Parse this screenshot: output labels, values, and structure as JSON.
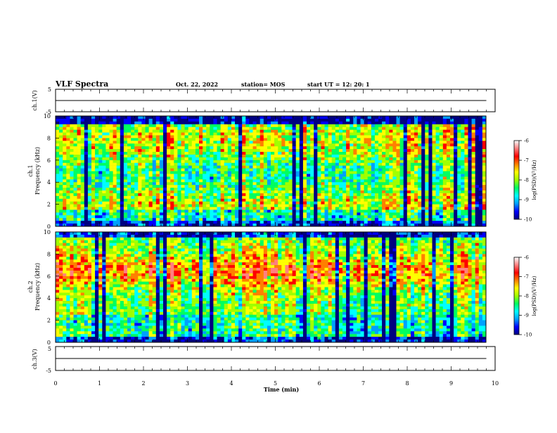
{
  "header": {
    "title": "VLF Spectra",
    "date": "Oct. 22, 2022",
    "station": "station= MOS",
    "start_ut": "start  UT =   12: 20: 1"
  },
  "chart_data": [
    {
      "type": "line",
      "title": "",
      "ylabel": "ch.1(V)",
      "xlabel": "",
      "xlim": [
        0,
        10
      ],
      "ylim": [
        -5,
        5
      ],
      "yticks": [
        "5",
        "-5"
      ],
      "x": [
        0,
        9.8
      ],
      "series": [
        {
          "values": [
            0,
            0
          ]
        }
      ]
    },
    {
      "type": "heatmap",
      "ylabel_channel": "ch.1",
      "ylabel": "Frequency  (kHz)",
      "xlim": [
        0,
        10
      ],
      "ylim": [
        0,
        10
      ],
      "yticks": [
        "0",
        "2",
        "4",
        "6",
        "8",
        "10"
      ],
      "colorbar": {
        "label": "log(PSD)(V²/Hz)",
        "range": [
          -10,
          -6
        ],
        "ticks": [
          "-6",
          "-7",
          "-8",
          "-9",
          "-10"
        ]
      }
    },
    {
      "type": "heatmap",
      "ylabel_channel": "ch.2",
      "ylabel": "Frequency  (kHz)",
      "xlim": [
        0,
        10
      ],
      "ylim": [
        0,
        10
      ],
      "yticks": [
        "0",
        "2",
        "4",
        "6",
        "8",
        "10"
      ],
      "colorbar": {
        "label": "log(PSD)(V²/Hz)",
        "range": [
          -10,
          -6
        ],
        "ticks": [
          "-6",
          "-7",
          "-8",
          "-9",
          "-10"
        ]
      }
    },
    {
      "type": "line",
      "title": "",
      "ylabel": "ch.3(V)",
      "xlabel": "Time  (min)",
      "xlim": [
        0,
        10
      ],
      "ylim": [
        -5,
        5
      ],
      "yticks": [
        "5",
        "-5"
      ],
      "xticks": [
        "0",
        "1",
        "2",
        "3",
        "4",
        "5",
        "6",
        "7",
        "8",
        "9",
        "10"
      ],
      "x": [
        0,
        9.8
      ],
      "series": [
        {
          "values": [
            0,
            0
          ]
        }
      ]
    }
  ],
  "colors": {
    "colormap": [
      "#000080",
      "#0000ff",
      "#00a0ff",
      "#00ffff",
      "#00ff60",
      "#a0ff00",
      "#ffff00",
      "#ff8000",
      "#ff0000",
      "#ff8080",
      "#ffffff"
    ]
  }
}
